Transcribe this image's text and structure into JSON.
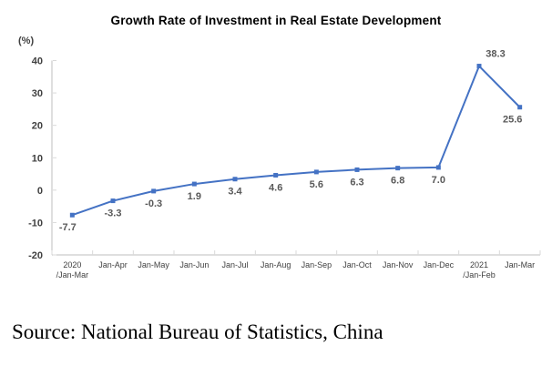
{
  "chart_data": {
    "type": "line",
    "title": "Growth Rate of Investment in Real Estate Development",
    "unit": "(%)",
    "categories": [
      "2020\n/Jan-Mar",
      "Jan-Apr",
      "Jan-May",
      "Jan-Jun",
      "Jan-Jul",
      "Jan-Aug",
      "Jan-Sep",
      "Jan-Oct",
      "Jan-Nov",
      "Jan-Dec",
      "2021\n/Jan-Feb",
      "Jan-Mar"
    ],
    "values": [
      -7.7,
      -3.3,
      -0.3,
      1.9,
      3.4,
      4.6,
      5.6,
      6.3,
      6.8,
      7.0,
      38.3,
      25.6
    ],
    "labels": [
      "-7.7",
      "-3.3",
      "-0.3",
      "1.9",
      "3.4",
      "4.6",
      "5.6",
      "6.3",
      "6.8",
      "7.0",
      "38.3",
      "25.6"
    ],
    "label_positions": [
      "below",
      "below",
      "below",
      "below",
      "below",
      "below",
      "below",
      "below",
      "below",
      "below",
      "above",
      "below"
    ],
    "ylim": [
      -20,
      40
    ],
    "yticks": [
      40,
      30,
      20,
      10,
      0,
      -10,
      -20
    ],
    "grid": false,
    "legend": "none",
    "line_color": "#4472C4",
    "marker": "square",
    "axis_color": "#bfbfbf",
    "tick_color": "#d9d9d9",
    "axis_text_color": "#404040",
    "data_label_color": "#595959"
  },
  "source_note": "Source: National Bureau of Statistics, China"
}
